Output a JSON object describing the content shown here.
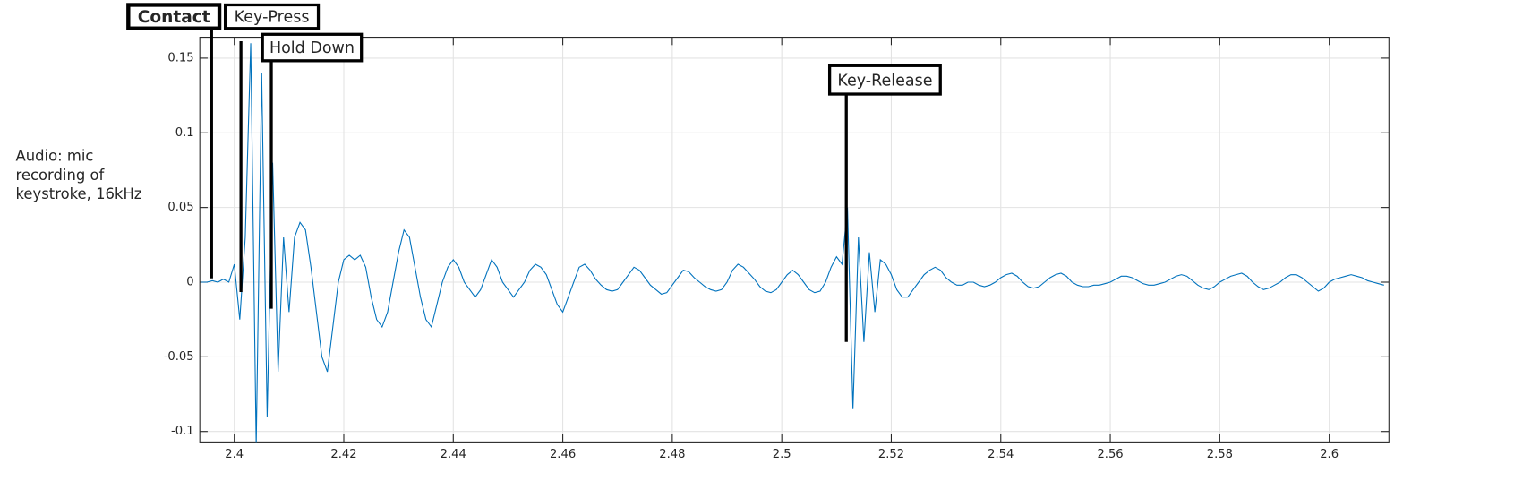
{
  "chart_data": {
    "type": "line",
    "ylabel": [
      "Audio: mic",
      "recording of",
      "keystroke, 16kHz"
    ],
    "annotations": [
      "Contact",
      "Key-Press",
      "Hold Down",
      "Key-Release"
    ],
    "color": "#0072bd",
    "grid": true,
    "xlim": [
      2.3937,
      2.6109
    ],
    "ylim": [
      -0.107,
      0.164
    ],
    "xticks": [
      2.4,
      2.42,
      2.44,
      2.46,
      2.48,
      2.5,
      2.52,
      2.54,
      2.56,
      2.58,
      2.6
    ],
    "yticks": [
      -0.1,
      -0.05,
      0,
      0.05,
      0.1,
      0.15
    ],
    "x": [
      2.394,
      2.395,
      2.396,
      2.397,
      2.398,
      2.399,
      2.4,
      2.401,
      2.402,
      2.403,
      2.404,
      2.405,
      2.406,
      2.407,
      2.408,
      2.409,
      2.41,
      2.411,
      2.412,
      2.413,
      2.414,
      2.415,
      2.416,
      2.417,
      2.418,
      2.419,
      2.42,
      2.421,
      2.422,
      2.423,
      2.424,
      2.425,
      2.426,
      2.427,
      2.428,
      2.429,
      2.43,
      2.431,
      2.432,
      2.433,
      2.434,
      2.435,
      2.436,
      2.437,
      2.438,
      2.439,
      2.44,
      2.441,
      2.442,
      2.443,
      2.444,
      2.445,
      2.446,
      2.447,
      2.448,
      2.449,
      2.45,
      2.451,
      2.452,
      2.453,
      2.454,
      2.455,
      2.456,
      2.457,
      2.458,
      2.459,
      2.46,
      2.461,
      2.462,
      2.463,
      2.464,
      2.465,
      2.466,
      2.467,
      2.468,
      2.469,
      2.47,
      2.471,
      2.472,
      2.473,
      2.474,
      2.475,
      2.476,
      2.477,
      2.478,
      2.479,
      2.48,
      2.481,
      2.482,
      2.483,
      2.484,
      2.485,
      2.486,
      2.487,
      2.488,
      2.489,
      2.49,
      2.491,
      2.492,
      2.493,
      2.494,
      2.495,
      2.496,
      2.497,
      2.498,
      2.499,
      2.5,
      2.501,
      2.502,
      2.503,
      2.504,
      2.505,
      2.506,
      2.507,
      2.508,
      2.509,
      2.51,
      2.511,
      2.512,
      2.513,
      2.514,
      2.515,
      2.516,
      2.517,
      2.518,
      2.519,
      2.52,
      2.521,
      2.522,
      2.523,
      2.524,
      2.525,
      2.526,
      2.527,
      2.528,
      2.529,
      2.53,
      2.531,
      2.532,
      2.533,
      2.534,
      2.535,
      2.536,
      2.537,
      2.538,
      2.539,
      2.54,
      2.541,
      2.542,
      2.543,
      2.544,
      2.545,
      2.546,
      2.547,
      2.548,
      2.549,
      2.55,
      2.551,
      2.552,
      2.553,
      2.554,
      2.555,
      2.556,
      2.557,
      2.558,
      2.559,
      2.56,
      2.561,
      2.562,
      2.563,
      2.564,
      2.565,
      2.566,
      2.567,
      2.568,
      2.569,
      2.57,
      2.571,
      2.572,
      2.573,
      2.574,
      2.575,
      2.576,
      2.577,
      2.578,
      2.579,
      2.58,
      2.581,
      2.582,
      2.583,
      2.584,
      2.585,
      2.586,
      2.587,
      2.588,
      2.589,
      2.59,
      2.591,
      2.592,
      2.593,
      2.594,
      2.595,
      2.596,
      2.597,
      2.598,
      2.599,
      2.6,
      2.601,
      2.602,
      2.603,
      2.604,
      2.605,
      2.606,
      2.607,
      2.608,
      2.609,
      2.61
    ],
    "values": [
      0,
      0,
      0.001,
      0,
      0.002,
      0,
      0.012,
      -0.025,
      0.03,
      0.16,
      -0.11,
      0.14,
      -0.09,
      0.08,
      -0.06,
      0.03,
      -0.02,
      0.03,
      0.04,
      0.035,
      0.01,
      -0.02,
      -0.05,
      -0.06,
      -0.03,
      0,
      0.015,
      0.018,
      0.015,
      0.018,
      0.01,
      -0.01,
      -0.025,
      -0.03,
      -0.02,
      0,
      0.02,
      0.035,
      0.03,
      0.01,
      -0.01,
      -0.025,
      -0.03,
      -0.015,
      0,
      0.01,
      0.015,
      0.01,
      0,
      -0.005,
      -0.01,
      -0.005,
      0.005,
      0.015,
      0.01,
      0,
      -0.005,
      -0.01,
      -0.005,
      0,
      0.008,
      0.012,
      0.01,
      0.005,
      -0.005,
      -0.015,
      -0.02,
      -0.01,
      0,
      0.01,
      0.012,
      0.008,
      0.002,
      -0.002,
      -0.005,
      -0.006,
      -0.005,
      0,
      0.005,
      0.01,
      0.008,
      0.003,
      -0.002,
      -0.005,
      -0.008,
      -0.007,
      -0.002,
      0.003,
      0.008,
      0.007,
      0.003,
      0,
      -0.003,
      -0.005,
      -0.006,
      -0.005,
      0,
      0.008,
      0.012,
      0.01,
      0.006,
      0.002,
      -0.003,
      -0.006,
      -0.007,
      -0.005,
      0,
      0.005,
      0.008,
      0.005,
      0,
      -0.005,
      -0.007,
      -0.006,
      0,
      0.01,
      0.017,
      0.012,
      0.05,
      -0.085,
      0.03,
      -0.04,
      0.02,
      -0.02,
      0.015,
      0.012,
      0.005,
      -0.005,
      -0.01,
      -0.01,
      -0.005,
      0,
      0.005,
      0.008,
      0.01,
      0.008,
      0.003,
      0,
      -0.002,
      -0.002,
      0,
      0,
      -0.002,
      -0.003,
      -0.002,
      0,
      0.003,
      0.005,
      0.006,
      0.004,
      0,
      -0.003,
      -0.004,
      -0.003,
      0,
      0.003,
      0.005,
      0.006,
      0.004,
      0,
      -0.002,
      -0.003,
      -0.003,
      -0.002,
      -0.002,
      -0.001,
      0,
      0.002,
      0.004,
      0.004,
      0.003,
      0.001,
      -0.001,
      -0.002,
      -0.002,
      -0.001,
      0,
      0.002,
      0.004,
      0.005,
      0.004,
      0.001,
      -0.002,
      -0.004,
      -0.005,
      -0.003,
      0,
      0.002,
      0.004,
      0.005,
      0.006,
      0.004,
      0,
      -0.003,
      -0.005,
      -0.004,
      -0.002,
      0,
      0.003,
      0.005,
      0.005,
      0.003,
      0,
      -0.003,
      -0.006,
      -0.004,
      0,
      0.002,
      0.003,
      0.004,
      0.005,
      0.004,
      0.003,
      0.001,
      0,
      -0.001,
      -0.002
    ]
  }
}
